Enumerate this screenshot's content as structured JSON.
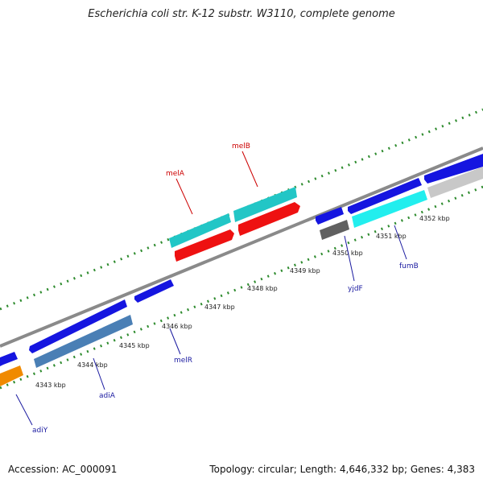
{
  "title": "Escherichia coli str. K-12 substr. W3110, complete genome",
  "accession_text": "Accession: AC_000091",
  "summary_text": "Topology: circular; Length: 4,646,332 bp; Genes: 4,383",
  "colors": {
    "backbone": "#8a8a8a",
    "tick": "#2e8b2e",
    "label_red": "#cc0000",
    "label_blue": "#1a1aa0",
    "blue_gene": "#1515e0",
    "cyan_gene": "#22c6c6",
    "bright_cyan_gene": "#22eeee",
    "red_gene": "#ee1111",
    "steel_gene": "#4a7fb5",
    "grey_gene": "#606060",
    "light_grey_gene": "#c8c8c8",
    "orange_gene": "#f08a00"
  },
  "kbp_labels": [
    "4343 kbp",
    "4344 kbp",
    "4345 kbp",
    "4346 kbp",
    "4347 kbp",
    "4348 kbp",
    "4349 kbp",
    "4350 kbp",
    "4351 kbp",
    "4352 kbp"
  ],
  "gene_labels": {
    "melB": "melB",
    "melA": "melA",
    "yjdF": "yjdF",
    "fumB": "fumB",
    "melR": "melR",
    "adiA": "adiA",
    "adiY": "adiY"
  }
}
